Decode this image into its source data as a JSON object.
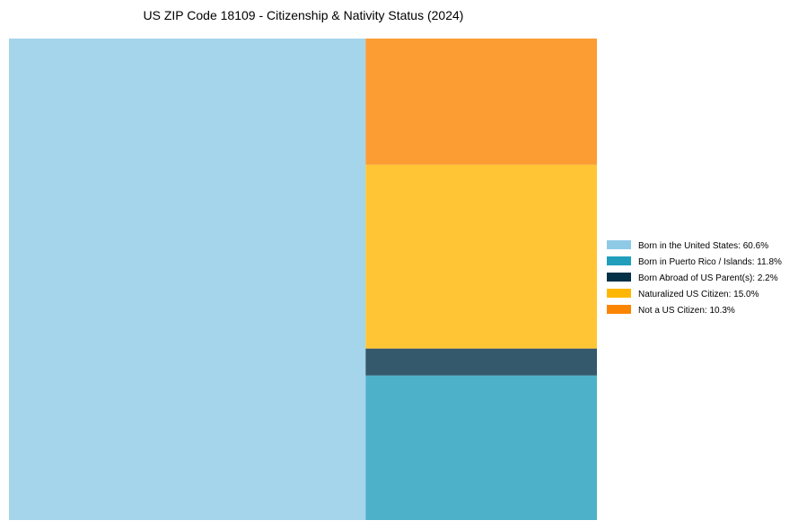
{
  "chart_data": {
    "type": "treemap",
    "title": "US ZIP Code 18109 - Citizenship & Nativity Status (2024)",
    "unit": "%",
    "legend_position": "right",
    "categories": [
      "Born in the United States",
      "Born in Puerto Rico / Islands",
      "Born Abroad of US Parent(s)",
      "Naturalized US Citizen",
      "Not a US Citizen"
    ],
    "values": [
      60.6,
      11.8,
      2.2,
      15.0,
      10.3
    ],
    "legend_labels": [
      "Born in the United States: 60.6%",
      "Born in Puerto Rico / Islands: 11.8%",
      "Born Abroad of US Parent(s): 2.2%",
      "Naturalized US Citizen: 15.0%",
      "Not a US Citizen: 10.3%"
    ],
    "colors": [
      "#8ecae6",
      "#219ebc",
      "#023047",
      "#ffb703",
      "#fb8500"
    ],
    "tile_opacity": 0.8
  }
}
